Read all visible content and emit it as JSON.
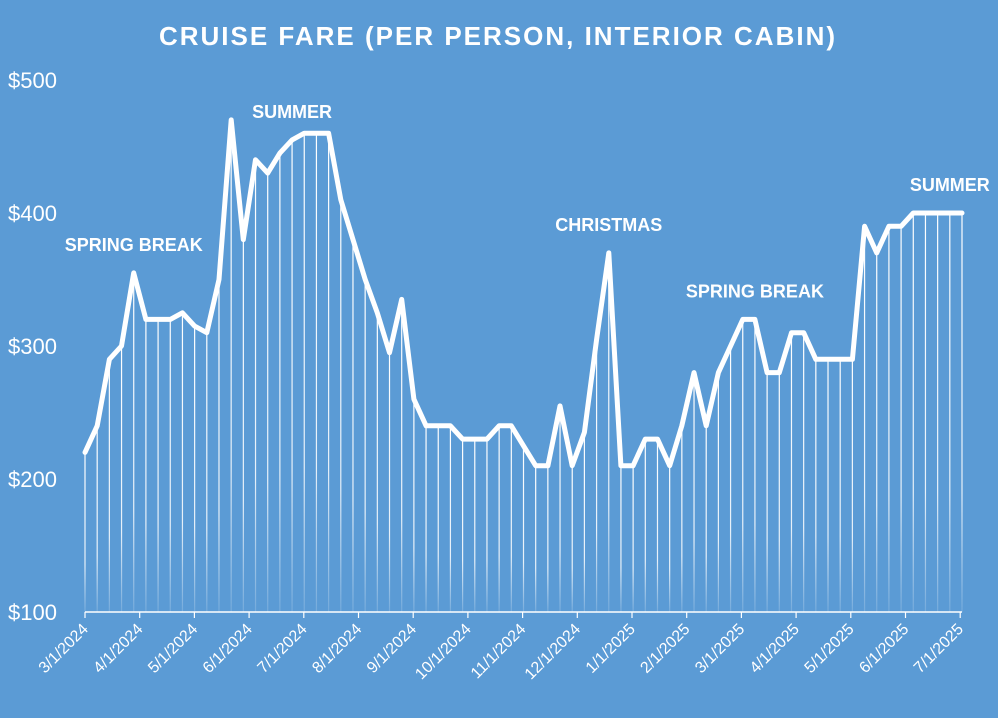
{
  "chart_data": {
    "type": "line",
    "title": "CRUISE FARE (PER PERSON, INTERIOR CABIN)",
    "xlabel": "",
    "ylabel": "",
    "ylim": [
      100,
      500
    ],
    "y_ticks": [
      "$100",
      "$200",
      "$300",
      "$400",
      "$500"
    ],
    "y_tick_values": [
      100,
      200,
      300,
      400,
      500
    ],
    "x_tick_labels": [
      "3/1/2024",
      "4/1/2024",
      "5/1/2024",
      "6/1/2024",
      "7/1/2024",
      "8/1/2024",
      "9/1/2024",
      "10/1/2024",
      "11/1/2024",
      "12/1/2024",
      "1/1/2025",
      "2/1/2025",
      "3/1/2025",
      "4/1/2025",
      "5/1/2025",
      "6/1/2025",
      "7/1/2025"
    ],
    "grid": false,
    "fill_style": "vertical white lines from each point to the baseline",
    "series": [
      {
        "values": [
          220,
          240,
          290,
          300,
          355,
          320,
          320,
          320,
          325,
          315,
          310,
          350,
          470,
          380,
          440,
          430,
          445,
          455,
          460,
          460,
          460,
          410,
          380,
          350,
          325,
          295,
          335,
          260,
          240,
          240,
          240,
          230,
          230,
          230,
          240,
          240,
          225,
          210,
          210,
          255,
          210,
          235,
          305,
          370,
          210,
          210,
          230,
          230,
          210,
          240,
          280,
          240,
          280,
          300,
          320,
          320,
          280,
          280,
          310,
          310,
          290,
          290,
          290,
          290,
          390,
          370,
          390,
          390,
          400,
          400,
          400,
          400,
          400
        ]
      }
    ],
    "annotations": [
      {
        "text": "SPRING BREAK",
        "at_index": 4
      },
      {
        "text": "SUMMER",
        "at_index": 17
      },
      {
        "text": "CHRISTMAS",
        "at_index": 43
      },
      {
        "text": "SPRING BREAK",
        "at_index": 55
      },
      {
        "text": "SUMMER",
        "at_index": 71
      }
    ]
  },
  "colors": {
    "background": "#5B9BD5",
    "line": "#FFFFFF",
    "text": "#FFFFFF"
  }
}
